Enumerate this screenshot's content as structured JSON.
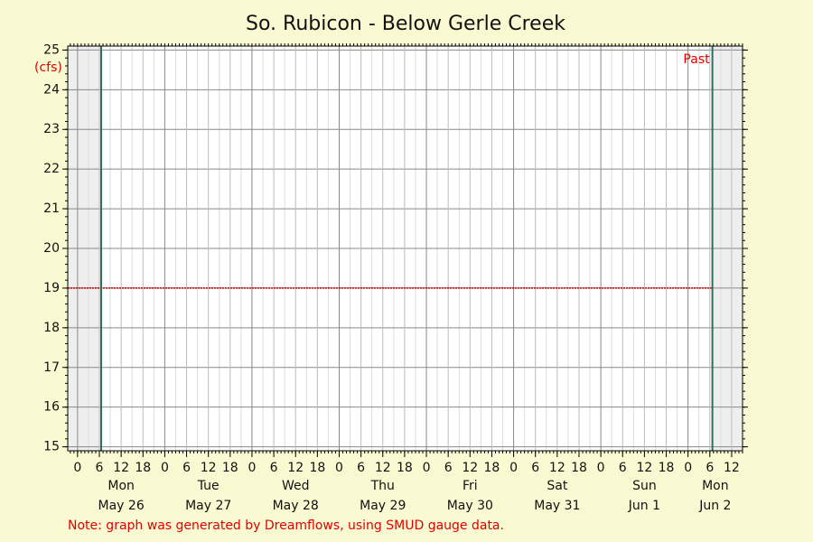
{
  "chart_data": {
    "type": "line",
    "title": "So. Rubicon - Below Gerle Creek",
    "y_unit": "(cfs)",
    "past_label": "Past",
    "note": "Note: graph was generated by Dreamflows, using SMUD gauge data.",
    "x": [
      -2.7,
      174.7
    ],
    "values": [
      19,
      19
    ],
    "color": "#cc0000",
    "xlim": [
      -2.7,
      183
    ],
    "ylim": [
      14.9,
      25.1
    ],
    "yticks": [
      15,
      16,
      17,
      18,
      19,
      20,
      21,
      22,
      23,
      24,
      25
    ],
    "xticks": [
      {
        "value": 0,
        "label": "0"
      },
      {
        "value": 6,
        "label": "6"
      },
      {
        "value": 12,
        "label": "12"
      },
      {
        "value": 18,
        "label": "18"
      },
      {
        "value": 24,
        "label": "0"
      },
      {
        "value": 30,
        "label": "6"
      },
      {
        "value": 36,
        "label": "12"
      },
      {
        "value": 42,
        "label": "18"
      },
      {
        "value": 48,
        "label": "0"
      },
      {
        "value": 54,
        "label": "6"
      },
      {
        "value": 60,
        "label": "12"
      },
      {
        "value": 66,
        "label": "18"
      },
      {
        "value": 72,
        "label": "0"
      },
      {
        "value": 78,
        "label": "6"
      },
      {
        "value": 84,
        "label": "12"
      },
      {
        "value": 90,
        "label": "18"
      },
      {
        "value": 96,
        "label": "0"
      },
      {
        "value": 102,
        "label": "6"
      },
      {
        "value": 108,
        "label": "12"
      },
      {
        "value": 114,
        "label": "18"
      },
      {
        "value": 120,
        "label": "0"
      },
      {
        "value": 126,
        "label": "6"
      },
      {
        "value": 132,
        "label": "12"
      },
      {
        "value": 138,
        "label": "18"
      },
      {
        "value": 144,
        "label": "0"
      },
      {
        "value": 150,
        "label": "6"
      },
      {
        "value": 156,
        "label": "12"
      },
      {
        "value": 162,
        "label": "18"
      },
      {
        "value": 168,
        "label": "0"
      },
      {
        "value": 174,
        "label": "6"
      },
      {
        "value": 180,
        "label": "12"
      }
    ],
    "days": [
      {
        "name": "Mon",
        "date": "May 26"
      },
      {
        "name": "Tue",
        "date": "May 27"
      },
      {
        "name": "Wed",
        "date": "May 28"
      },
      {
        "name": "Thu",
        "date": "May 29"
      },
      {
        "name": "Fri",
        "date": "May 30"
      },
      {
        "name": "Sat",
        "date": "May 31"
      },
      {
        "name": "Sun",
        "date": "Jun 1"
      },
      {
        "name": "Mon",
        "date": "Jun 2"
      }
    ],
    "shaded": [
      [
        -2.7,
        6.5
      ],
      [
        174.7,
        183
      ]
    ],
    "grid": true
  }
}
